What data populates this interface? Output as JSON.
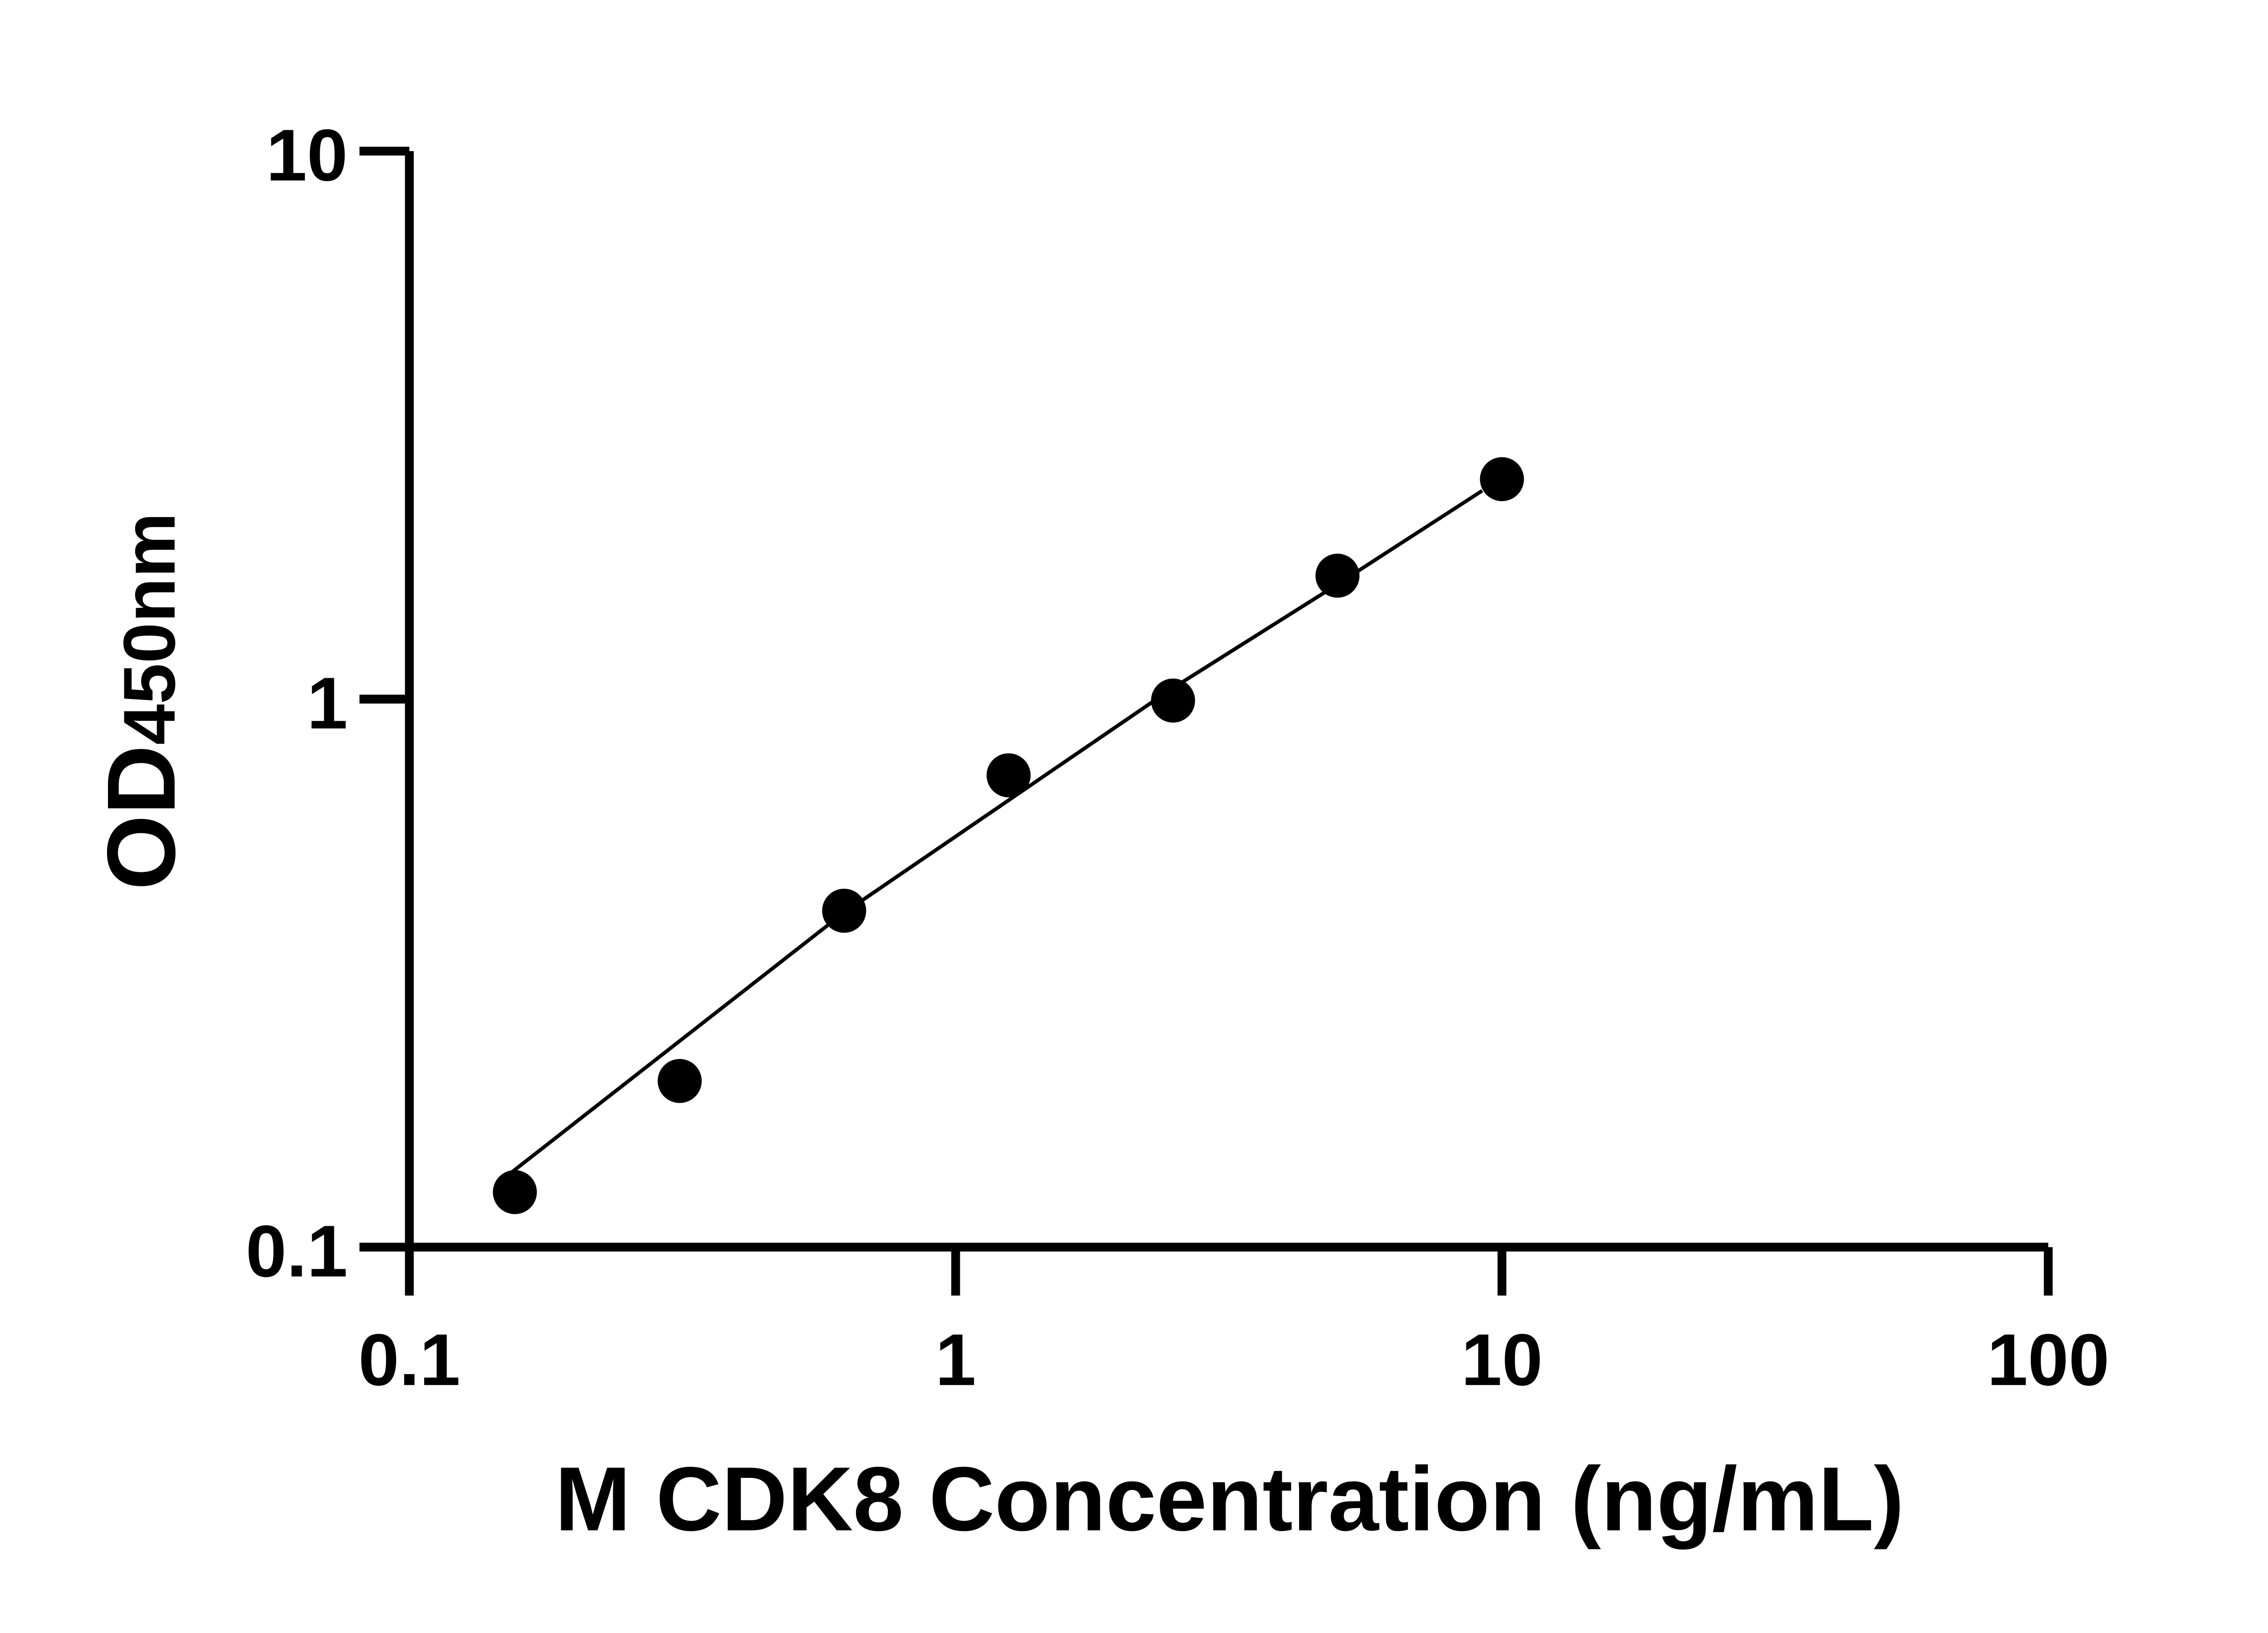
{
  "chart_data": {
    "type": "scatter",
    "title": "",
    "xlabel": "M CDK8 Concentration (ng/mL)",
    "ylabel": {
      "main": "OD",
      "sub": "450nm"
    },
    "x_scale": "log",
    "y_scale": "log",
    "xlim": [
      0.1,
      100
    ],
    "ylim": [
      0.1,
      10
    ],
    "x_ticks": [
      {
        "value": 0.1,
        "label": "0.1"
      },
      {
        "value": 1,
        "label": "1"
      },
      {
        "value": 10,
        "label": "10"
      },
      {
        "value": 100,
        "label": "100"
      }
    ],
    "y_ticks": [
      {
        "value": 0.1,
        "label": "0.1"
      },
      {
        "value": 1,
        "label": "1"
      },
      {
        "value": 10,
        "label": "10"
      }
    ],
    "grid": false,
    "points": {
      "x": [
        0.156,
        0.3125,
        0.625,
        1.25,
        2.5,
        5,
        10
      ],
      "y": [
        0.126,
        0.201,
        0.411,
        0.726,
        0.994,
        1.68,
        2.52
      ]
    },
    "fit_curve": {
      "x": [
        0.154,
        0.617,
        2.47,
        5,
        9.2
      ],
      "y": [
        0.137,
        0.404,
        1.04,
        1.62,
        2.4
      ]
    },
    "colors": {
      "marker": "#000000",
      "line": "#000000",
      "axis": "#000000"
    }
  }
}
